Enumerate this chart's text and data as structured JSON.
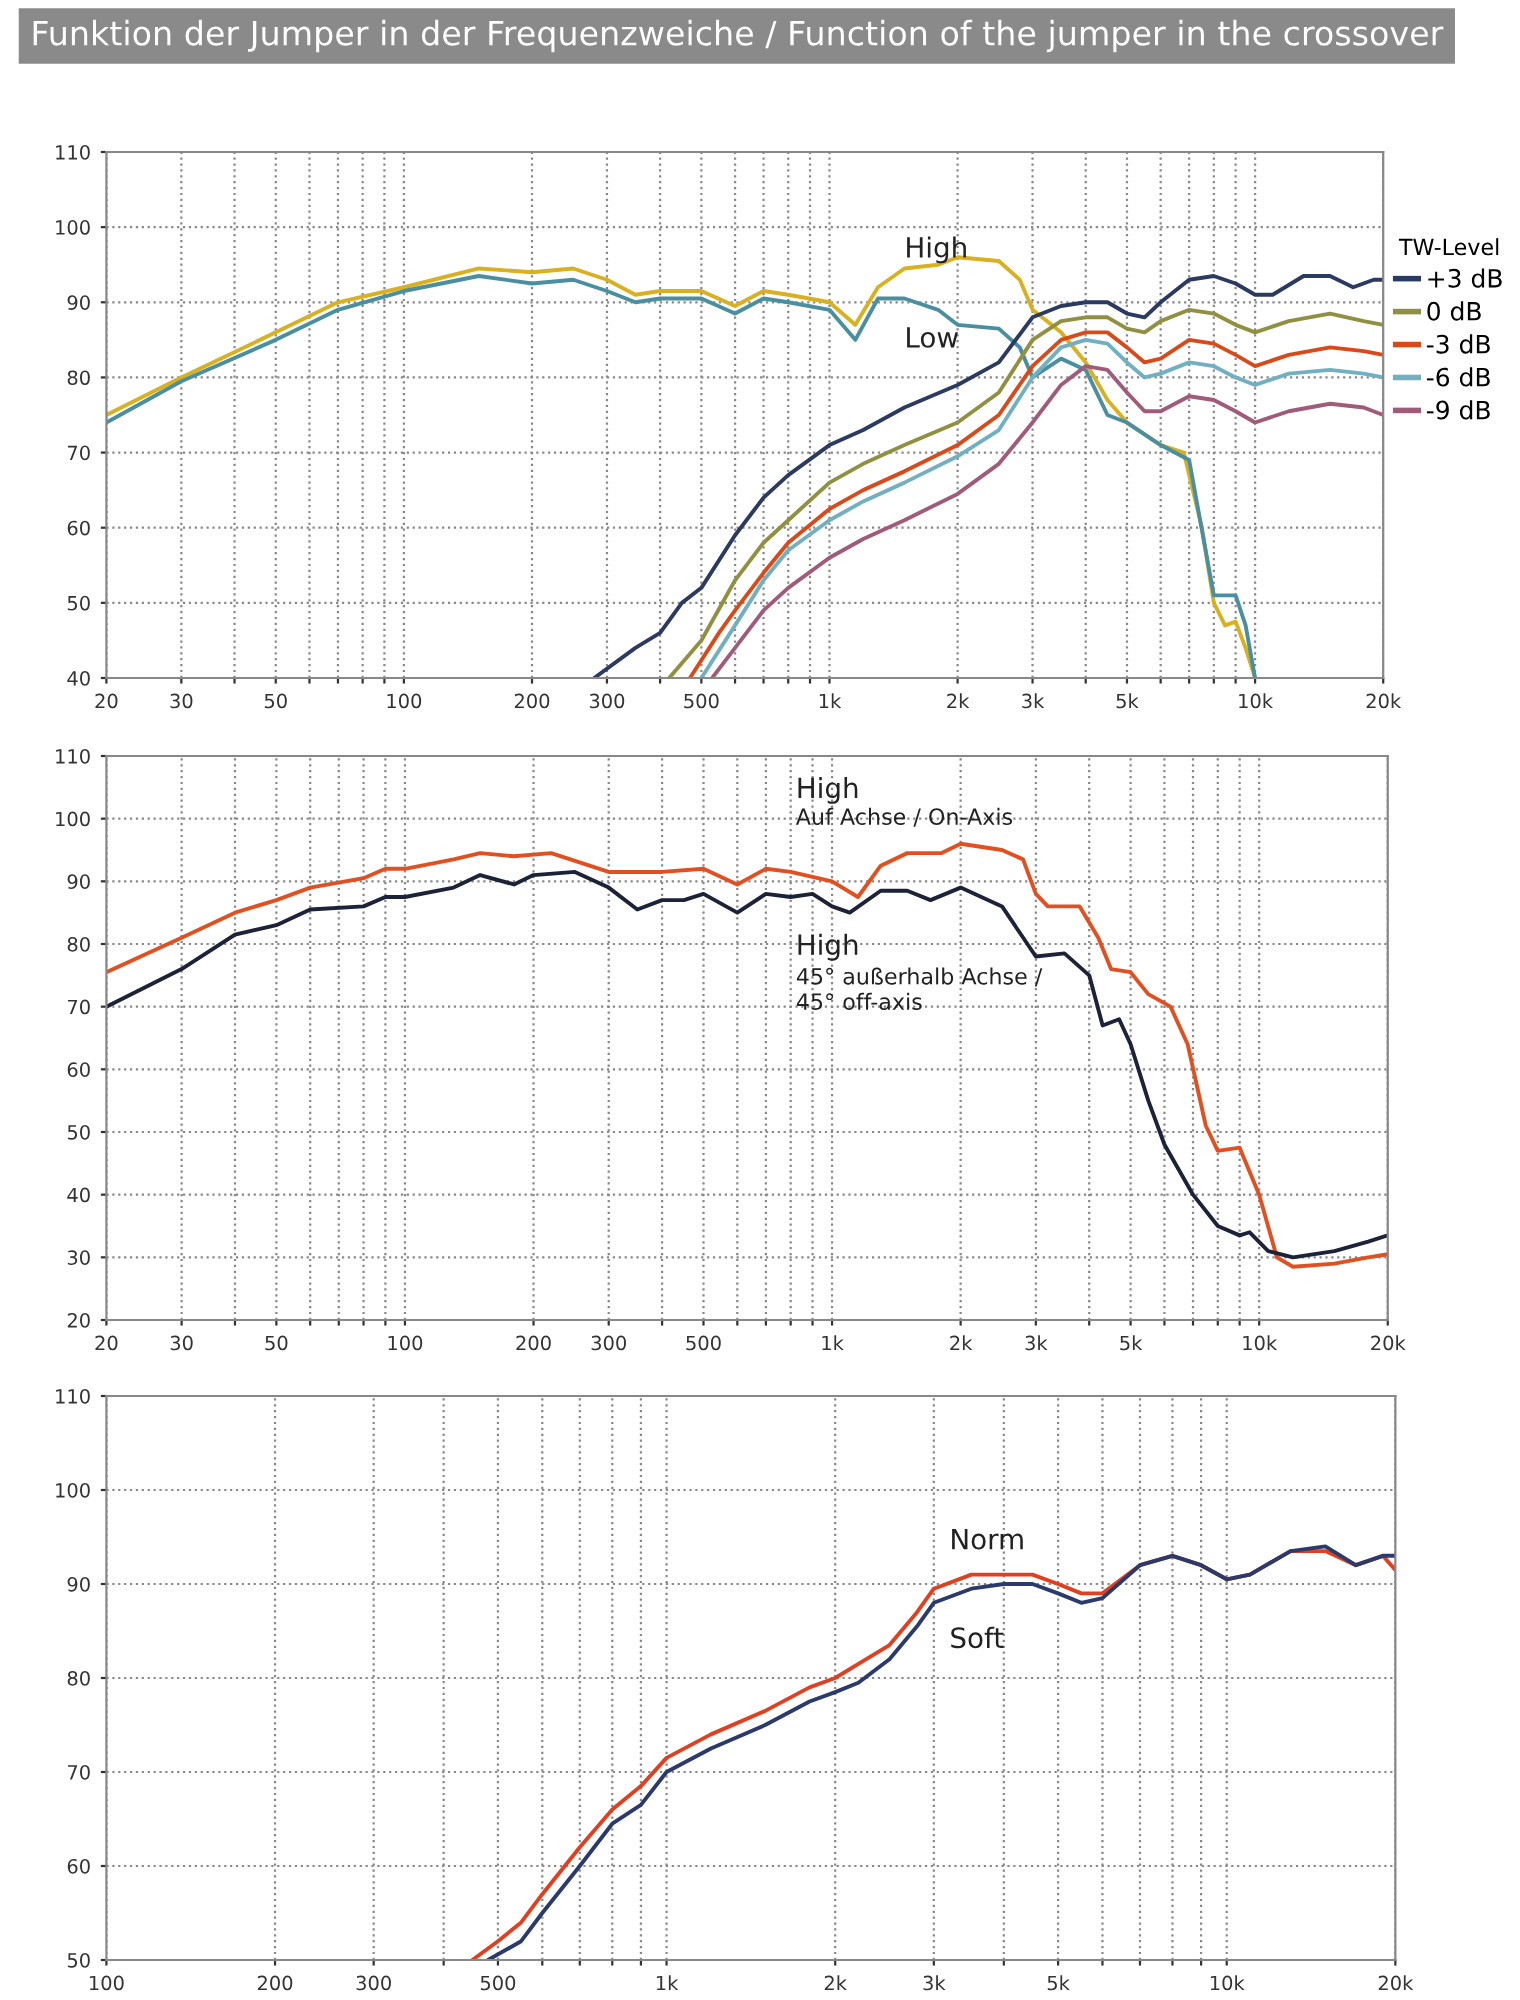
{
  "chart_data": [
    {
      "type": "line",
      "title": "Funktion der Jumper in der Frequenzweiche / Function of the jumper in the crossover",
      "log": "x",
      "grid": true,
      "legend": "right",
      "legend_title": "TW-Level",
      "line_style": "solid",
      "xlim": [
        20,
        20000
      ],
      "ylim": [
        40,
        110
      ],
      "yticks": [
        40,
        50,
        60,
        70,
        80,
        90,
        100,
        110
      ],
      "xticks": [
        20,
        30,
        {
          "value": 40,
          "label": null
        },
        50,
        {
          "value": 60,
          "label": null
        },
        {
          "value": 70,
          "label": null
        },
        {
          "value": 80,
          "label": null
        },
        {
          "value": 90,
          "label": null
        },
        100,
        200,
        300,
        {
          "value": 400,
          "label": null
        },
        500,
        {
          "value": 600,
          "label": null
        },
        {
          "value": 700,
          "label": null
        },
        {
          "value": 800,
          "label": null
        },
        {
          "value": 900,
          "label": null
        },
        {
          "value": 1000,
          "label": "1k"
        },
        {
          "value": 2000,
          "label": "2k"
        },
        {
          "value": 3000,
          "label": "3k"
        },
        {
          "value": 4000,
          "label": null
        },
        {
          "value": 5000,
          "label": "5k"
        },
        {
          "value": 6000,
          "label": null
        },
        {
          "value": 7000,
          "label": null
        },
        {
          "value": 8000,
          "label": null
        },
        {
          "value": 9000,
          "label": null
        },
        {
          "value": 10000,
          "label": "10k"
        },
        {
          "value": 20000,
          "label": "20k"
        }
      ],
      "annotations": [
        "High",
        "Low"
      ],
      "series": [
        {
          "color": "#d8b020",
          "x": [
            20,
            30,
            50,
            70,
            100,
            150,
            200,
            250,
            300,
            350,
            400,
            500,
            600,
            700,
            800,
            1000,
            1150,
            1300,
            1500,
            1800,
            2000,
            2500,
            2800,
            3000,
            3500,
            4000,
            4500,
            5000,
            6000,
            6800,
            7500,
            8000,
            8500,
            9000,
            9500,
            10000
          ],
          "values": [
            75,
            80,
            86,
            90,
            92,
            94.5,
            94,
            94.5,
            93,
            91,
            91.5,
            91.5,
            89.5,
            91.5,
            91,
            90,
            87,
            92,
            94.5,
            95,
            96,
            95.5,
            93,
            89,
            86,
            82,
            77,
            74,
            71,
            70,
            60,
            50,
            47,
            47.5,
            44,
            40
          ]
        },
        {
          "color": "#4a8fa0",
          "x": [
            20,
            30,
            50,
            70,
            100,
            150,
            200,
            250,
            300,
            350,
            400,
            500,
            600,
            700,
            800,
            1000,
            1150,
            1300,
            1500,
            1800,
            2000,
            2500,
            2800,
            3000,
            3500,
            4000,
            4500,
            5000,
            6000,
            7000,
            8000,
            9000,
            9500,
            10000
          ],
          "values": [
            74,
            79.5,
            85,
            89,
            91.5,
            93.5,
            92.5,
            93,
            91.5,
            90,
            90.5,
            90.5,
            88.5,
            90.5,
            90,
            89,
            85,
            90.5,
            90.5,
            89,
            87,
            86.5,
            84,
            80,
            82.5,
            81,
            75,
            74,
            71,
            69,
            51,
            51,
            47,
            40
          ]
        },
        {
          "name": "+3 dB",
          "color": "#2a3a60",
          "x": [
            280,
            350,
            400,
            450,
            500,
            600,
            700,
            800,
            1000,
            1200,
            1500,
            2000,
            2500,
            3000,
            3500,
            4000,
            4500,
            5000,
            5500,
            6000,
            7000,
            8000,
            9000,
            10000,
            11000,
            13000,
            15000,
            17000,
            19000,
            20000
          ],
          "values": [
            40,
            44,
            46,
            50,
            52,
            59,
            64,
            67,
            71,
            73,
            76,
            79,
            82,
            88,
            89.5,
            90,
            90,
            88.5,
            88,
            90,
            93,
            93.5,
            92.5,
            91,
            91,
            93.5,
            93.5,
            92,
            93,
            93
          ]
        },
        {
          "name": "0 dB",
          "color": "#909040",
          "x": [
            420,
            500,
            600,
            700,
            800,
            1000,
            1200,
            1500,
            2000,
            2500,
            3000,
            3500,
            4000,
            4500,
            5000,
            5500,
            6000,
            7000,
            8000,
            9000,
            10000,
            12000,
            15000,
            18000,
            20000
          ],
          "values": [
            40,
            45,
            53,
            58,
            61,
            66,
            68.5,
            71,
            74,
            78,
            85,
            87.5,
            88,
            88,
            86.5,
            86,
            87.5,
            89,
            88.5,
            87,
            86,
            87.5,
            88.5,
            87.5,
            87
          ]
        },
        {
          "name": "-3 dB",
          "color": "#d84a1a",
          "x": [
            470,
            550,
            600,
            700,
            800,
            1000,
            1200,
            1500,
            2000,
            2500,
            3000,
            3500,
            4000,
            4500,
            5000,
            5500,
            6000,
            7000,
            8000,
            9000,
            10000,
            12000,
            15000,
            18000,
            20000
          ],
          "values": [
            40,
            46,
            49,
            54,
            58,
            62.5,
            65,
            67.5,
            71,
            75,
            81.5,
            85,
            86,
            86,
            84,
            82,
            82.5,
            85,
            84.5,
            83,
            81.5,
            83,
            84,
            83.5,
            83
          ]
        },
        {
          "name": "-6 dB",
          "color": "#70b0c0",
          "x": [
            500,
            600,
            700,
            800,
            1000,
            1200,
            1500,
            2000,
            2500,
            3000,
            3500,
            4000,
            4500,
            5000,
            5500,
            6000,
            7000,
            8000,
            9000,
            10000,
            12000,
            15000,
            18000,
            20000
          ],
          "values": [
            40,
            47,
            53,
            57,
            61,
            63.5,
            66,
            69.5,
            73,
            80,
            84,
            85,
            84.5,
            82,
            80,
            80.5,
            82,
            81.5,
            80,
            79,
            80.5,
            81,
            80.5,
            80
          ]
        },
        {
          "name": "-9 dB",
          "color": "#a05a7a",
          "x": [
            530,
            600,
            700,
            800,
            1000,
            1200,
            1500,
            2000,
            2500,
            3000,
            3500,
            4000,
            4500,
            5000,
            5500,
            6000,
            7000,
            8000,
            9000,
            10000,
            12000,
            15000,
            18000,
            20000
          ],
          "values": [
            40,
            44,
            49,
            52,
            56,
            58.5,
            61,
            64.5,
            68.5,
            74,
            79,
            81.5,
            81,
            78,
            75.5,
            75.5,
            77.5,
            77,
            75.5,
            74,
            75.5,
            76.5,
            76,
            75
          ]
        }
      ]
    },
    {
      "type": "line",
      "log": "x",
      "grid": true,
      "line_style": "solid",
      "xlim": [
        20,
        20000
      ],
      "ylim": [
        20,
        110
      ],
      "yticks": [
        20,
        30,
        40,
        50,
        60,
        70,
        80,
        90,
        100,
        110
      ],
      "xticks": [
        20,
        30,
        {
          "value": 40,
          "label": null
        },
        50,
        {
          "value": 60,
          "label": null
        },
        {
          "value": 70,
          "label": null
        },
        {
          "value": 80,
          "label": null
        },
        {
          "value": 90,
          "label": null
        },
        100,
        200,
        300,
        {
          "value": 400,
          "label": null
        },
        500,
        {
          "value": 600,
          "label": null
        },
        {
          "value": 700,
          "label": null
        },
        {
          "value": 800,
          "label": null
        },
        {
          "value": 900,
          "label": null
        },
        {
          "value": 1000,
          "label": "1k"
        },
        {
          "value": 2000,
          "label": "2k"
        },
        {
          "value": 3000,
          "label": "3k"
        },
        {
          "value": 4000,
          "label": null
        },
        {
          "value": 5000,
          "label": "5k"
        },
        {
          "value": 6000,
          "label": null
        },
        {
          "value": 7000,
          "label": null
        },
        {
          "value": 8000,
          "label": null
        },
        {
          "value": 9000,
          "label": null
        },
        {
          "value": 10000,
          "label": "10k"
        },
        {
          "value": 20000,
          "label": "20k"
        }
      ],
      "annotations": [
        "High",
        "Auf Achse / On-Axis",
        "High",
        "45° außerhalb Achse /",
        "45° off-axis"
      ],
      "series": [
        {
          "color": "#e05020",
          "x": [
            20,
            30,
            40,
            50,
            60,
            80,
            90,
            100,
            130,
            150,
            180,
            220,
            300,
            400,
            500,
            600,
            700,
            800,
            1000,
            1150,
            1300,
            1500,
            1800,
            2000,
            2500,
            2800,
            3000,
            3200,
            3800,
            4200,
            4500,
            5000,
            5500,
            6200,
            6800,
            7500,
            8000,
            9000,
            10000,
            11000,
            12000,
            15000,
            18000,
            20000
          ],
          "values": [
            75.5,
            81,
            85,
            87,
            89,
            90.5,
            92,
            92,
            93.5,
            94.5,
            94,
            94.5,
            91.5,
            91.5,
            92,
            89.5,
            92,
            91.5,
            90,
            87.5,
            92.5,
            94.5,
            94.5,
            96,
            95,
            93.5,
            88,
            86,
            86,
            81,
            76,
            75.5,
            72,
            70,
            64,
            51,
            47,
            47.5,
            40,
            30,
            28.5,
            29,
            30,
            30.5
          ]
        },
        {
          "color": "#1c2238",
          "x": [
            20,
            30,
            40,
            50,
            60,
            80,
            90,
            100,
            130,
            150,
            180,
            200,
            250,
            300,
            350,
            400,
            450,
            500,
            600,
            700,
            800,
            900,
            1000,
            1100,
            1300,
            1500,
            1700,
            2000,
            2500,
            3000,
            3500,
            4000,
            4300,
            4700,
            5000,
            5500,
            6000,
            7000,
            8000,
            9000,
            9500,
            10500,
            12000,
            15000,
            18000,
            20000
          ],
          "values": [
            70,
            76,
            81.5,
            83,
            85.5,
            86,
            87.5,
            87.5,
            89,
            91,
            89.5,
            91,
            91.5,
            89,
            85.5,
            87,
            87,
            88,
            85,
            88,
            87.5,
            88,
            86,
            85,
            88.5,
            88.5,
            87,
            89,
            86,
            78,
            78.5,
            75,
            67,
            68,
            64,
            55,
            48,
            40,
            35,
            33.5,
            34,
            31,
            30,
            31,
            32.5,
            33.5
          ]
        }
      ]
    },
    {
      "type": "line",
      "log": "x",
      "grid": true,
      "line_style": "solid",
      "xlim": [
        100,
        20000
      ],
      "ylim": [
        50,
        110
      ],
      "yticks": [
        50,
        60,
        70,
        80,
        90,
        100,
        110
      ],
      "xticks": [
        100,
        200,
        300,
        {
          "value": 400,
          "label": null
        },
        500,
        {
          "value": 600,
          "label": null
        },
        {
          "value": 700,
          "label": null
        },
        {
          "value": 800,
          "label": null
        },
        {
          "value": 900,
          "label": null
        },
        {
          "value": 1000,
          "label": "1k"
        },
        {
          "value": 2000,
          "label": "2k"
        },
        {
          "value": 3000,
          "label": "3k"
        },
        {
          "value": 4000,
          "label": null
        },
        {
          "value": 5000,
          "label": "5k"
        },
        {
          "value": 6000,
          "label": null
        },
        {
          "value": 7000,
          "label": null
        },
        {
          "value": 8000,
          "label": null
        },
        {
          "value": 9000,
          "label": null
        },
        {
          "value": 10000,
          "label": "10k"
        },
        {
          "value": 20000,
          "label": "20k"
        }
      ],
      "annotations": [
        "Norm",
        "Soft"
      ],
      "series": [
        {
          "color": "#e04020",
          "x": [
            450,
            500,
            550,
            600,
            700,
            800,
            900,
            1000,
            1200,
            1500,
            1800,
            2000,
            2200,
            2500,
            2800,
            3000,
            3500,
            4000,
            4500,
            5000,
            5500,
            6000,
            7000,
            8000,
            9000,
            10000,
            11000,
            13000,
            15000,
            17000,
            19000,
            20000
          ],
          "values": [
            50,
            52,
            54,
            57,
            62,
            66,
            68.5,
            71.5,
            74,
            76.5,
            79,
            80,
            81.5,
            83.5,
            87,
            89.5,
            91,
            91,
            91,
            90,
            89,
            89,
            92,
            93,
            92,
            90.5,
            91,
            93.5,
            93.5,
            92,
            93,
            91.5
          ]
        },
        {
          "color": "#2a3a6a",
          "x": [
            480,
            550,
            600,
            700,
            800,
            900,
            1000,
            1200,
            1500,
            1800,
            2000,
            2200,
            2500,
            2800,
            3000,
            3500,
            4000,
            4500,
            5000,
            5500,
            6000,
            7000,
            8000,
            9000,
            10000,
            11000,
            13000,
            15000,
            17000,
            19000,
            20000
          ],
          "values": [
            50,
            52,
            55,
            60,
            64.5,
            66.5,
            70,
            72.5,
            75,
            77.5,
            78.5,
            79.5,
            82,
            85.5,
            88,
            89.5,
            90,
            90,
            89,
            88,
            88.5,
            92,
            93,
            92,
            90.5,
            91,
            93.5,
            94,
            92,
            93,
            93
          ]
        }
      ]
    }
  ]
}
